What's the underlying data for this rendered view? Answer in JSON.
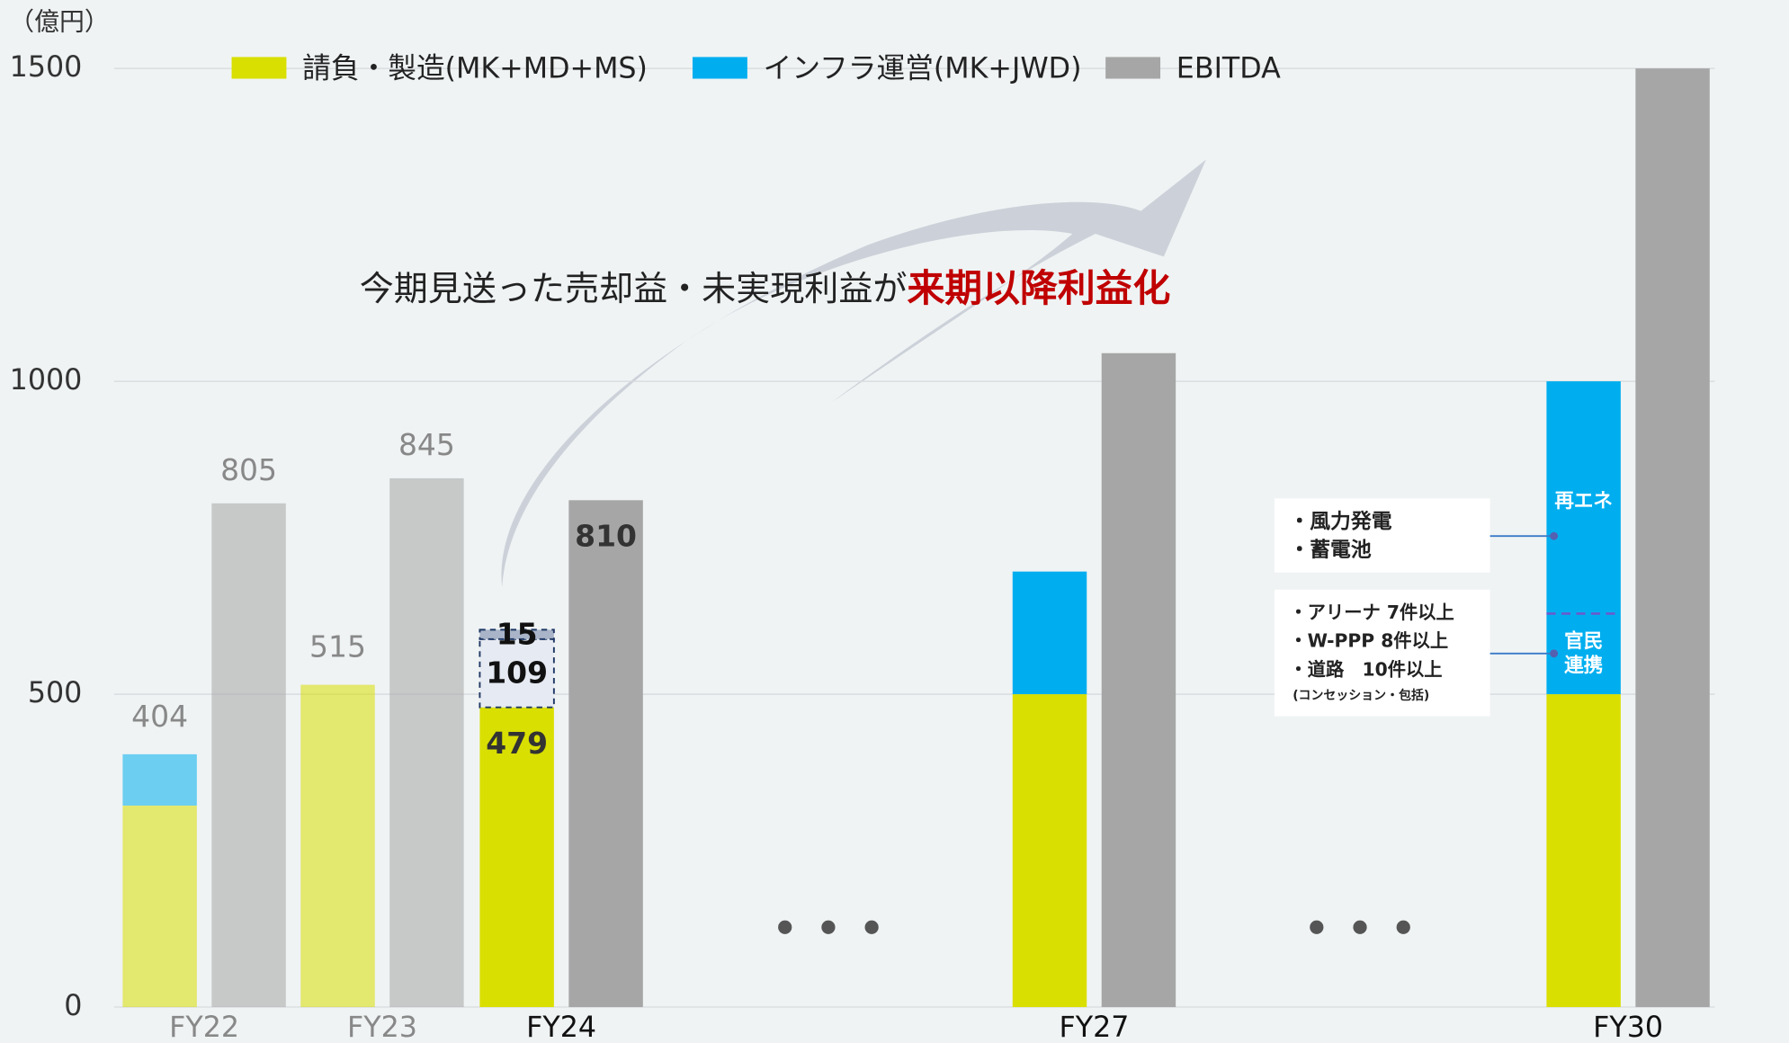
{
  "chart_data": {
    "type": "bar",
    "y_label": "（億円）",
    "categories": [
      "FY22",
      "FY23",
      "FY24",
      null,
      "FY27",
      null,
      "FY30"
    ],
    "faded": [
      true,
      true,
      false,
      false,
      false,
      false,
      false
    ],
    "series": [
      {
        "name": "請負・製造(MK+MD+MS)",
        "color": "#d9df00",
        "stack": 0,
        "values": [
          322,
          515,
          479,
          null,
          500,
          null,
          500
        ],
        "show_labels": [
          false,
          false,
          true,
          false,
          false,
          false,
          false
        ]
      },
      {
        "name": "インフラ運営(MK+JWD)",
        "color": "#00aeef",
        "stack": 0,
        "values": [
          82,
          0,
          0,
          null,
          196,
          null,
          500
        ],
        "show_labels": [
          false,
          false,
          false,
          false,
          false,
          false,
          false
        ]
      },
      {
        "color": "#e6eaf2",
        "stack": 0,
        "dashed": true,
        "values": [
          null,
          null,
          109,
          null,
          null,
          null,
          null
        ],
        "show_labels": [
          false,
          false,
          true,
          false,
          false,
          false,
          false
        ]
      },
      {
        "color": "#a9b4c8",
        "stack": 0,
        "dashed": true,
        "values": [
          null,
          null,
          15,
          null,
          null,
          null,
          null
        ],
        "show_labels": [
          false,
          false,
          true,
          false,
          false,
          false,
          false
        ]
      },
      {
        "name": "EBITDA",
        "color": "#a6a6a6",
        "stack": 1,
        "values": [
          805,
          845,
          810,
          null,
          1045,
          null,
          1500
        ],
        "show_labels": [
          true,
          true,
          true,
          false,
          false,
          false,
          false
        ]
      }
    ],
    "totals": [
      404,
      515,
      null,
      null,
      null,
      null,
      null
    ],
    "ylim": [
      0,
      1500
    ],
    "yticks": [
      0,
      500,
      1000,
      1500
    ],
    "grid": true,
    "annotations": {
      "headline": "今期見送った売却益・未実現利益が",
      "headline_emphasis": "来期以降利益化",
      "segment_label_1": "再エネ",
      "segment_label_2": [
        "官民",
        "連携"
      ],
      "callout_1": [
        "・風力発電",
        "・蓄電池"
      ],
      "callout_2": [
        "・アリーナ 7件以上",
        "・W-PPP 8件以上",
        "・道路　10件以上",
        "(コンセッション・包括)"
      ]
    }
  }
}
